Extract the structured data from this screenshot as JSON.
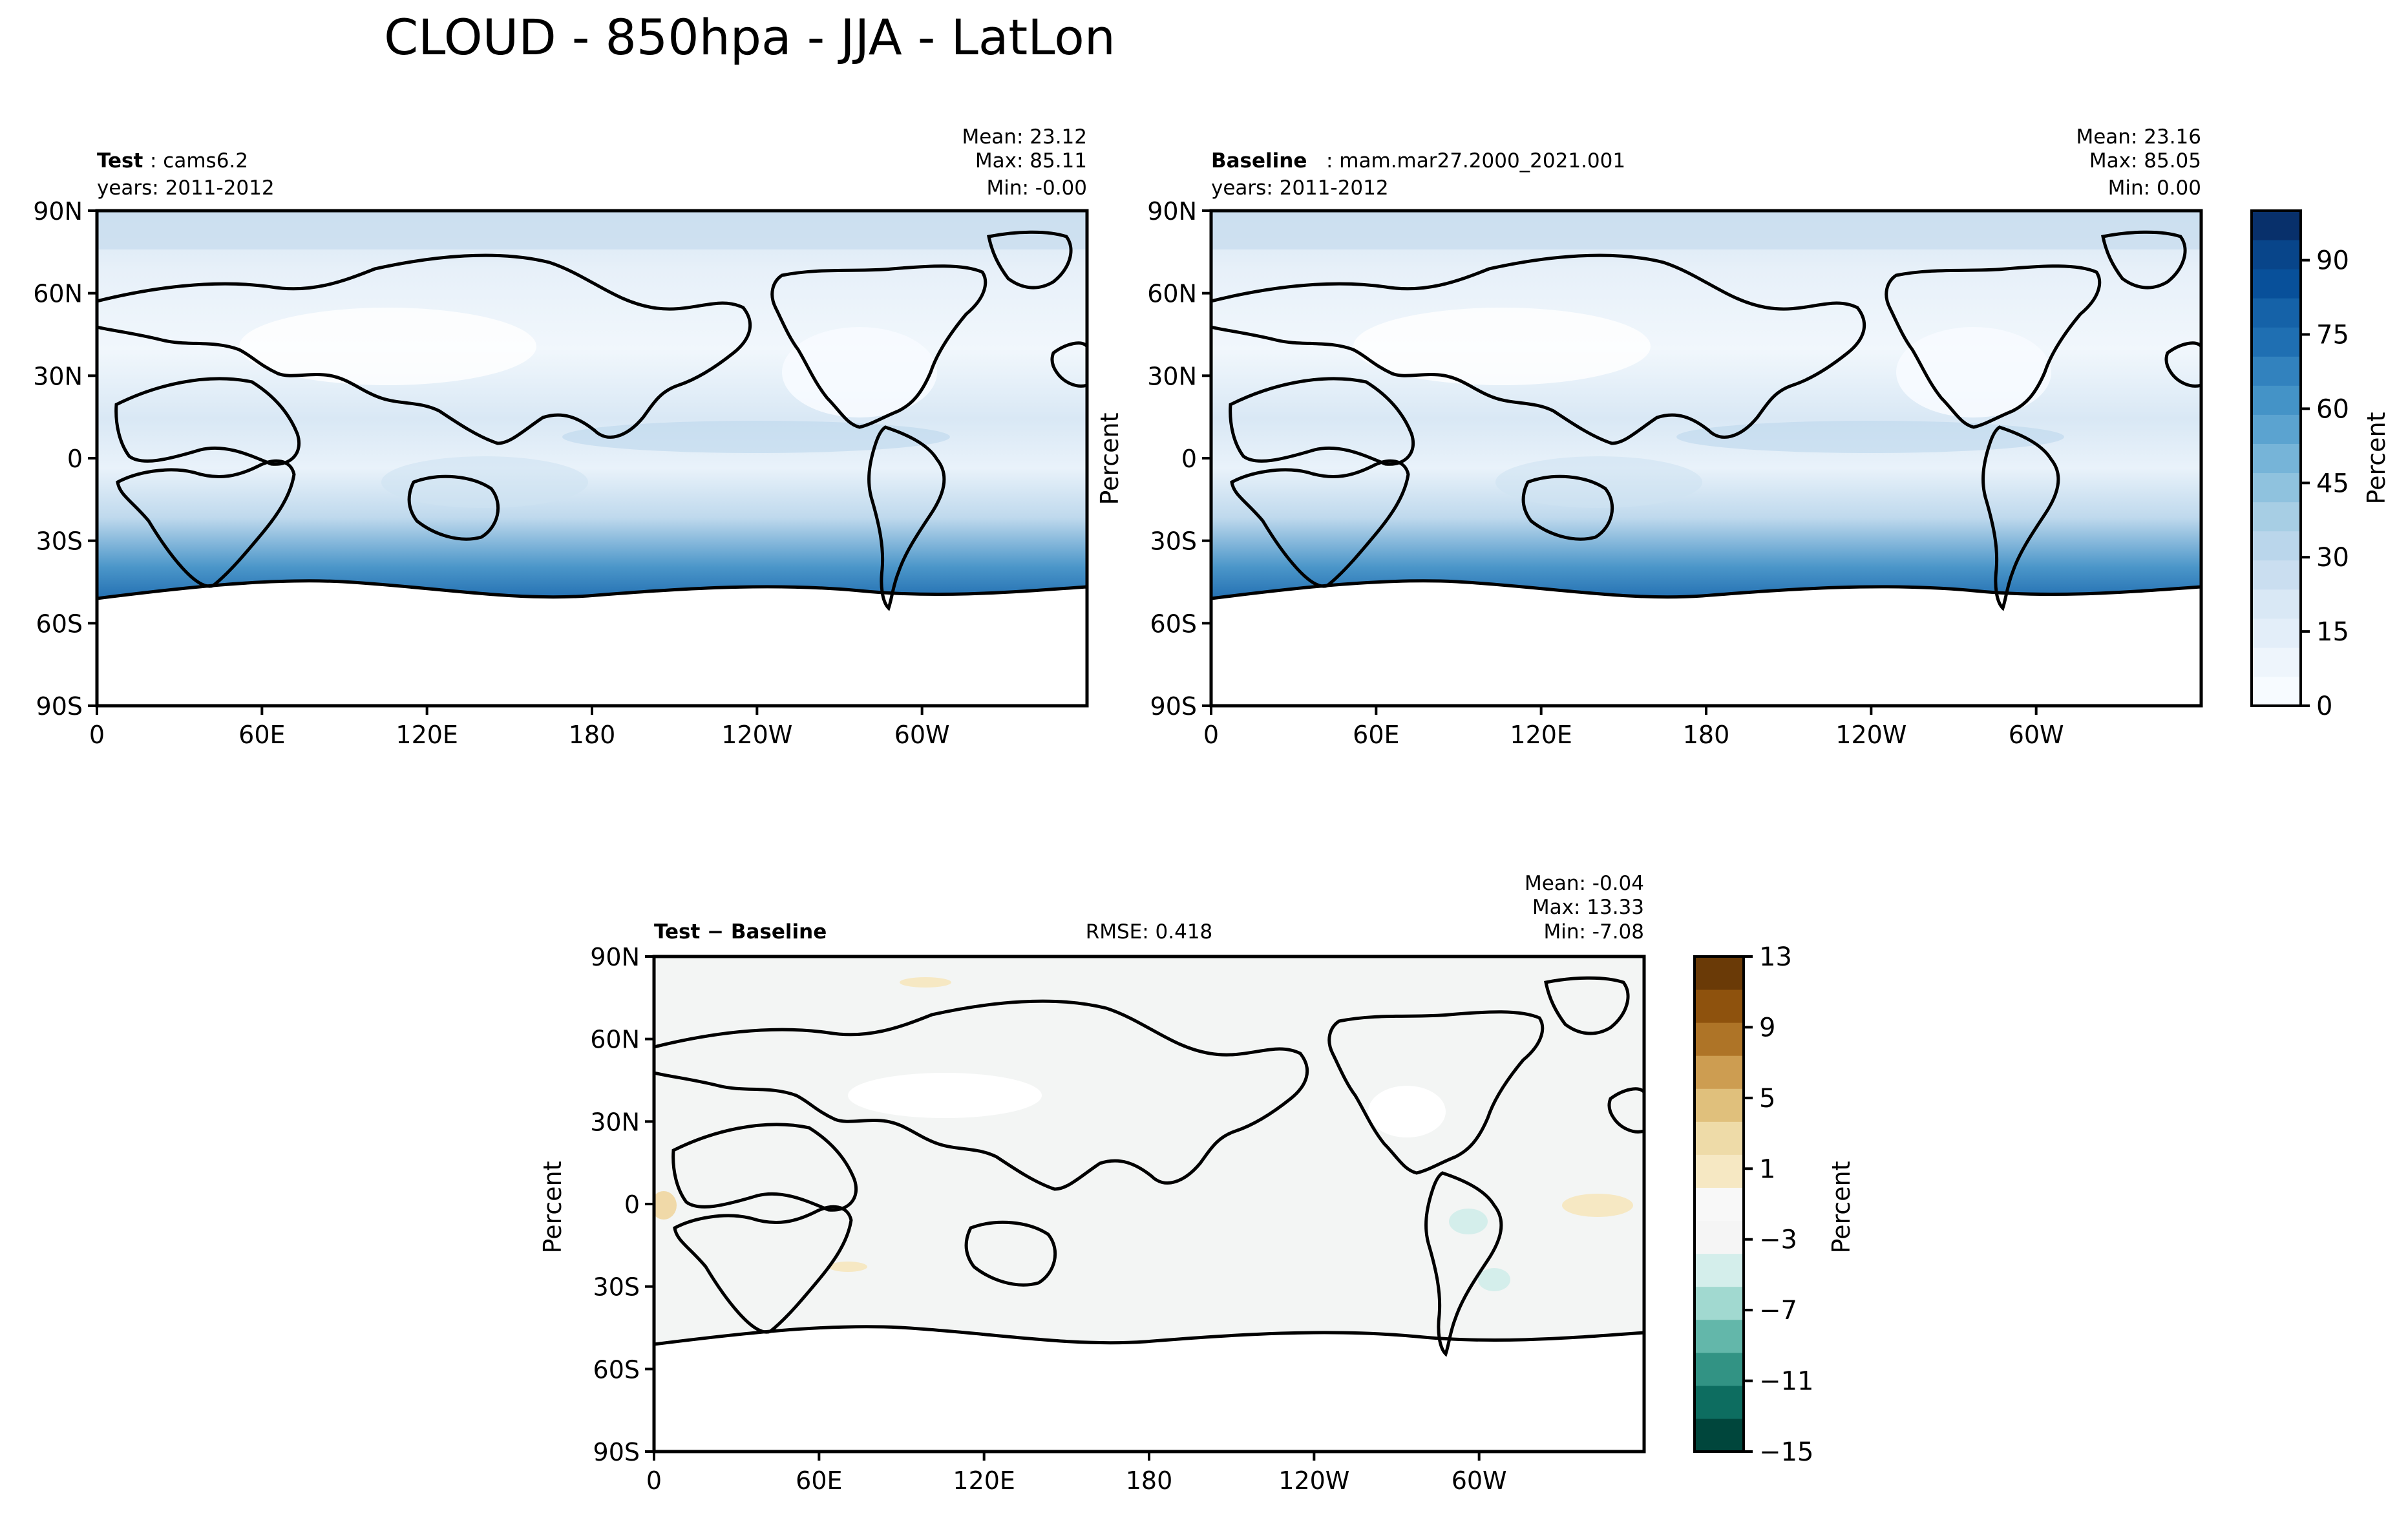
{
  "figure": {
    "title": "CLOUD - 850hpa - JJA - LatLon"
  },
  "axes": {
    "lat_ticks": [
      "90N",
      "60N",
      "30N",
      "0",
      "30S",
      "60S",
      "90S"
    ],
    "lon_ticks": [
      "0",
      "60E",
      "120E",
      "180",
      "120W",
      "60W"
    ]
  },
  "panels": {
    "test": {
      "label_bold": "Test",
      "label_text": ": cams6.2",
      "years": "years: 2011-2012",
      "mean": "Mean: 23.12",
      "max": "Max: 85.11",
      "min": "Min: -0.00"
    },
    "baseline": {
      "label_bold": "Baseline",
      "label_text": ": mam.mar27.2000_2021.001",
      "years": "years: 2011-2012",
      "mean": "Mean: 23.16",
      "max": "Max: 85.05",
      "min": "Min:  0.00",
      "ylabel": "Percent"
    },
    "diff": {
      "label": "Test − Baseline",
      "rmse": "RMSE: 0.418",
      "mean": "Mean: -0.04",
      "max": "Max: 13.33",
      "min": "Min: -7.08",
      "ylabel": "Percent"
    }
  },
  "colorbars": {
    "main": {
      "label": "Percent",
      "ticks": [
        "0",
        "15",
        "30",
        "45",
        "60",
        "75",
        "90"
      ],
      "colors": [
        "#f7fbff",
        "#eef5fc",
        "#e3eef9",
        "#d9e8f5",
        "#cadef0",
        "#bad6eb",
        "#a7cee4",
        "#8fc2de",
        "#76b4d8",
        "#5ba3d0",
        "#4493c7",
        "#3282be",
        "#1f6fb2",
        "#1562a8",
        "#08509a",
        "#08458a",
        "#08306b"
      ]
    },
    "diff": {
      "label": "Percent",
      "ticks": [
        "13",
        "9",
        "5",
        "1",
        "−3",
        "−7",
        "−11",
        "−15"
      ],
      "colors": [
        "#00463c",
        "#0d6d60",
        "#329384",
        "#63b7aa",
        "#a1d9d0",
        "#d4eeeb",
        "#f5f5f5",
        "#f8f8f8",
        "#f6e8c3",
        "#eedba8",
        "#e0c07c",
        "#cd9d51",
        "#ae7427",
        "#8e520d",
        "#6a3a07"
      ]
    }
  },
  "field_colors": {
    "ocean_light": "#dceaf6",
    "ocean_mid": "#a9cde6",
    "storm_track": "#1f6fb2",
    "land_light": "#f4f9fe",
    "diff_background": "#f3f5f4"
  }
}
